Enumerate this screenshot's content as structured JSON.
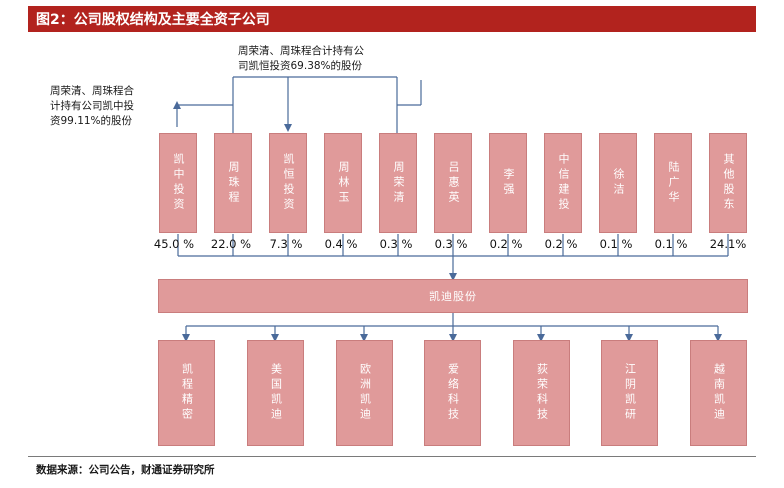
{
  "header": {
    "title": "图2：公司股权结构及主要全资子公司"
  },
  "annotations": {
    "kaiheng_note": "周荣清、周珠程合计持有公\n司凯恒投资69.38%的股份",
    "kaizhong_note": "周荣清、周珠程合\n计持有公司凯中投\n资99.11%的股份"
  },
  "shareholders": [
    {
      "name": "凯中投资",
      "pct": "45.0 %"
    },
    {
      "name": "周珠程",
      "pct": "22.0 %"
    },
    {
      "name": "凯恒投资",
      "pct": "7.3 %"
    },
    {
      "name": "周林玉",
      "pct": "0.4 %"
    },
    {
      "name": "周荣清",
      "pct": "0.3 %"
    },
    {
      "name": "吕惠英",
      "pct": "0.3 %"
    },
    {
      "name": "李强",
      "pct": "0.2 %"
    },
    {
      "name": "中信建投",
      "pct": "0.2 %"
    },
    {
      "name": "徐洁",
      "pct": "0.1 %"
    },
    {
      "name": "陆广华",
      "pct": "0.1 %"
    },
    {
      "name": "其他股东",
      "pct": "24.1%"
    }
  ],
  "company": {
    "name": "凯迪股份"
  },
  "subsidiaries": [
    {
      "name": "凯程精密"
    },
    {
      "name": "美国凯迪"
    },
    {
      "name": "欧洲凯迪"
    },
    {
      "name": "爱络科技"
    },
    {
      "name": "荻荣科技"
    },
    {
      "name": "江阴凯研"
    },
    {
      "name": "越南凯迪"
    }
  ],
  "footer": {
    "source": "数据来源：公司公告，财通证券研究所"
  },
  "colors": {
    "title_bar": "#b2231e",
    "box_fill": "#e09a9a",
    "line": "#4a6a9a"
  }
}
